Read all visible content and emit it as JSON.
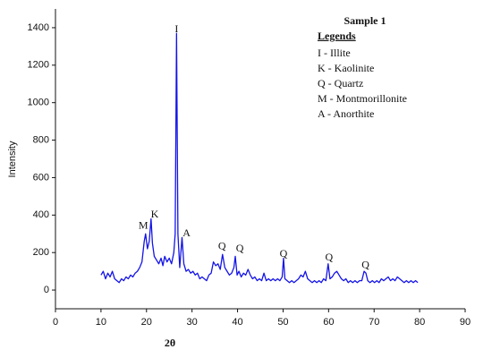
{
  "chart_data": {
    "type": "line",
    "xlabel": "2θ",
    "ylabel": "Intensity",
    "xlim": [
      0,
      90
    ],
    "ylim": [
      -100,
      1500
    ],
    "xticks": [
      0,
      10,
      20,
      30,
      40,
      50,
      60,
      70,
      80,
      90
    ],
    "yticks": [
      0,
      200,
      400,
      600,
      800,
      1000,
      1200,
      1400
    ],
    "x": [
      10,
      10.5,
      11,
      11.5,
      12,
      12.5,
      13,
      13.5,
      14,
      14.5,
      15,
      15.5,
      16,
      16.5,
      17,
      17.5,
      18,
      18.5,
      19,
      19.5,
      19.8,
      20.2,
      20.6,
      21,
      21.3,
      21.7,
      22.2,
      22.7,
      23.2,
      23.6,
      24,
      24.5,
      25,
      25.5,
      26,
      26.3,
      26.6,
      26.9,
      27.3,
      27.8,
      28.2,
      28.7,
      29.2,
      29.7,
      30.2,
      30.7,
      31.2,
      31.7,
      32.2,
      32.7,
      33.2,
      33.7,
      34.2,
      34.7,
      35.2,
      35.7,
      36.2,
      36.7,
      37.2,
      37.7,
      38.2,
      38.7,
      39.2,
      39.5,
      39.9,
      40.3,
      40.8,
      41.3,
      41.8,
      42.3,
      42.8,
      43.3,
      43.8,
      44.3,
      44.8,
      45.3,
      45.8,
      46.3,
      46.8,
      47.3,
      47.8,
      48.3,
      48.8,
      49.3,
      49.8,
      50.1,
      50.4,
      50.9,
      51.4,
      51.9,
      52.4,
      52.9,
      53.4,
      53.9,
      54.4,
      54.9,
      55.4,
      55.9,
      56.4,
      56.9,
      57.4,
      57.9,
      58.4,
      58.9,
      59.4,
      59.9,
      60.3,
      60.8,
      61.3,
      61.8,
      62.3,
      62.8,
      63.3,
      63.8,
      64.3,
      64.8,
      65.3,
      65.8,
      66.3,
      66.8,
      67.3,
      67.8,
      68.2,
      68.6,
      69.1,
      69.6,
      70.1,
      70.6,
      71.1,
      71.6,
      72.1,
      72.6,
      73.1,
      73.6,
      74.1,
      74.6,
      75.1,
      75.6,
      76.1,
      76.6,
      77.1,
      77.6,
      78.1,
      78.6,
      79.1,
      79.6
    ],
    "series": [
      {
        "name": "Sample 1",
        "color": "#1414e6",
        "values": [
          80,
          100,
          60,
          90,
          70,
          100,
          60,
          50,
          40,
          60,
          50,
          70,
          60,
          80,
          70,
          90,
          100,
          120,
          150,
          260,
          300,
          220,
          260,
          380,
          250,
          180,
          160,
          140,
          170,
          130,
          180,
          150,
          170,
          140,
          200,
          300,
          1370,
          300,
          120,
          280,
          140,
          100,
          110,
          90,
          100,
          80,
          90,
          60,
          70,
          60,
          50,
          80,
          90,
          150,
          130,
          140,
          110,
          190,
          120,
          100,
          80,
          90,
          120,
          180,
          80,
          100,
          70,
          90,
          80,
          110,
          80,
          60,
          70,
          50,
          60,
          50,
          90,
          50,
          60,
          50,
          60,
          50,
          60,
          50,
          70,
          170,
          60,
          50,
          40,
          50,
          40,
          50,
          60,
          80,
          70,
          100,
          60,
          50,
          40,
          50,
          40,
          50,
          40,
          60,
          50,
          140,
          60,
          70,
          90,
          100,
          80,
          60,
          50,
          60,
          40,
          50,
          40,
          50,
          40,
          50,
          50,
          100,
          90,
          50,
          40,
          50,
          40,
          50,
          40,
          60,
          50,
          60,
          70,
          50,
          60,
          50,
          70,
          60,
          50,
          40,
          50,
          40,
          50,
          40,
          50,
          40
        ]
      }
    ],
    "annotations": [
      {
        "text": "M",
        "x": 19.3,
        "y": 340
      },
      {
        "text": "K",
        "x": 21.8,
        "y": 400
      },
      {
        "text": "I",
        "x": 26.6,
        "y": 1390
      },
      {
        "text": "A",
        "x": 28.8,
        "y": 300
      },
      {
        "text": "Q",
        "x": 36.6,
        "y": 230
      },
      {
        "text": "Q",
        "x": 40.5,
        "y": 220
      },
      {
        "text": "Q",
        "x": 50.1,
        "y": 190
      },
      {
        "text": "Q",
        "x": 60.1,
        "y": 170
      },
      {
        "text": "Q",
        "x": 68.1,
        "y": 130
      }
    ],
    "legend_title": "Sample 1",
    "legend_heading": "Legends",
    "legend_entries": [
      "I - Illite",
      "K - Kaolinite",
      "Q - Quartz",
      "M - Montmorillonite",
      "A - Anorthite"
    ]
  }
}
